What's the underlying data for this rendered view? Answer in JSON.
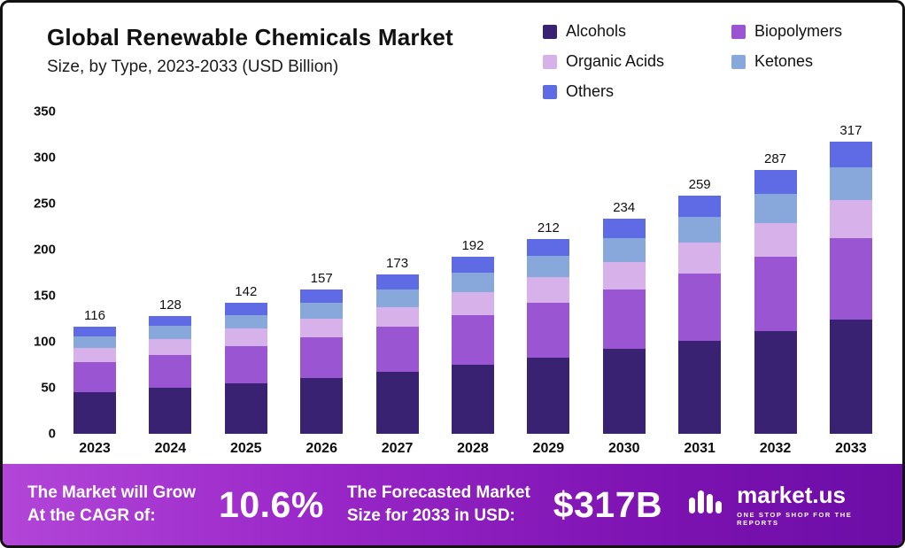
{
  "header": {
    "title": "Global Renewable Chemicals Market",
    "subtitle": "Size, by Type, 2023-2033 (USD Billion)"
  },
  "chart_data": {
    "type": "bar",
    "stacked": true,
    "title": "Global Renewable Chemicals Market Size, by Type, 2023-2033 (USD Billion)",
    "categories": [
      "2023",
      "2024",
      "2025",
      "2026",
      "2027",
      "2028",
      "2029",
      "2030",
      "2031",
      "2032",
      "2033"
    ],
    "totals": [
      116,
      128,
      142,
      157,
      173,
      192,
      212,
      234,
      259,
      287,
      317
    ],
    "series": [
      {
        "name": "Alcohols",
        "color": "#3a2272",
        "values": [
          45,
          50,
          55,
          61,
          67,
          75,
          83,
          92,
          101,
          112,
          124
        ]
      },
      {
        "name": "Biopolymers",
        "color": "#9a55d2",
        "values": [
          33,
          36,
          40,
          44,
          49,
          54,
          59,
          65,
          73,
          80,
          89
        ]
      },
      {
        "name": "Organic Acids",
        "color": "#d7b1ea",
        "values": [
          15,
          17,
          19,
          20,
          22,
          25,
          28,
          30,
          34,
          37,
          41
        ]
      },
      {
        "name": "Ketones",
        "color": "#88a7db",
        "values": [
          13,
          14,
          15,
          17,
          19,
          21,
          23,
          26,
          28,
          32,
          35
        ]
      },
      {
        "name": "Others",
        "color": "#5e6be4",
        "values": [
          10,
          11,
          13,
          15,
          16,
          17,
          19,
          21,
          23,
          26,
          28
        ]
      }
    ],
    "xlabel": "",
    "ylabel": "",
    "ylim": [
      0,
      350
    ],
    "yticks": [
      0,
      50,
      100,
      150,
      200,
      250,
      300,
      350
    ],
    "legend_position": "top-right",
    "grid": false
  },
  "banner": {
    "cagr_label_line1": "The Market will Grow",
    "cagr_label_line2": "At the CAGR of:",
    "cagr_value": "10.6%",
    "forecast_label_line1": "The Forecasted Market",
    "forecast_label_line2": "Size for 2033 in USD:",
    "forecast_value": "$317B",
    "brand": "market.us",
    "tagline": "ONE STOP SHOP FOR THE REPORTS"
  }
}
